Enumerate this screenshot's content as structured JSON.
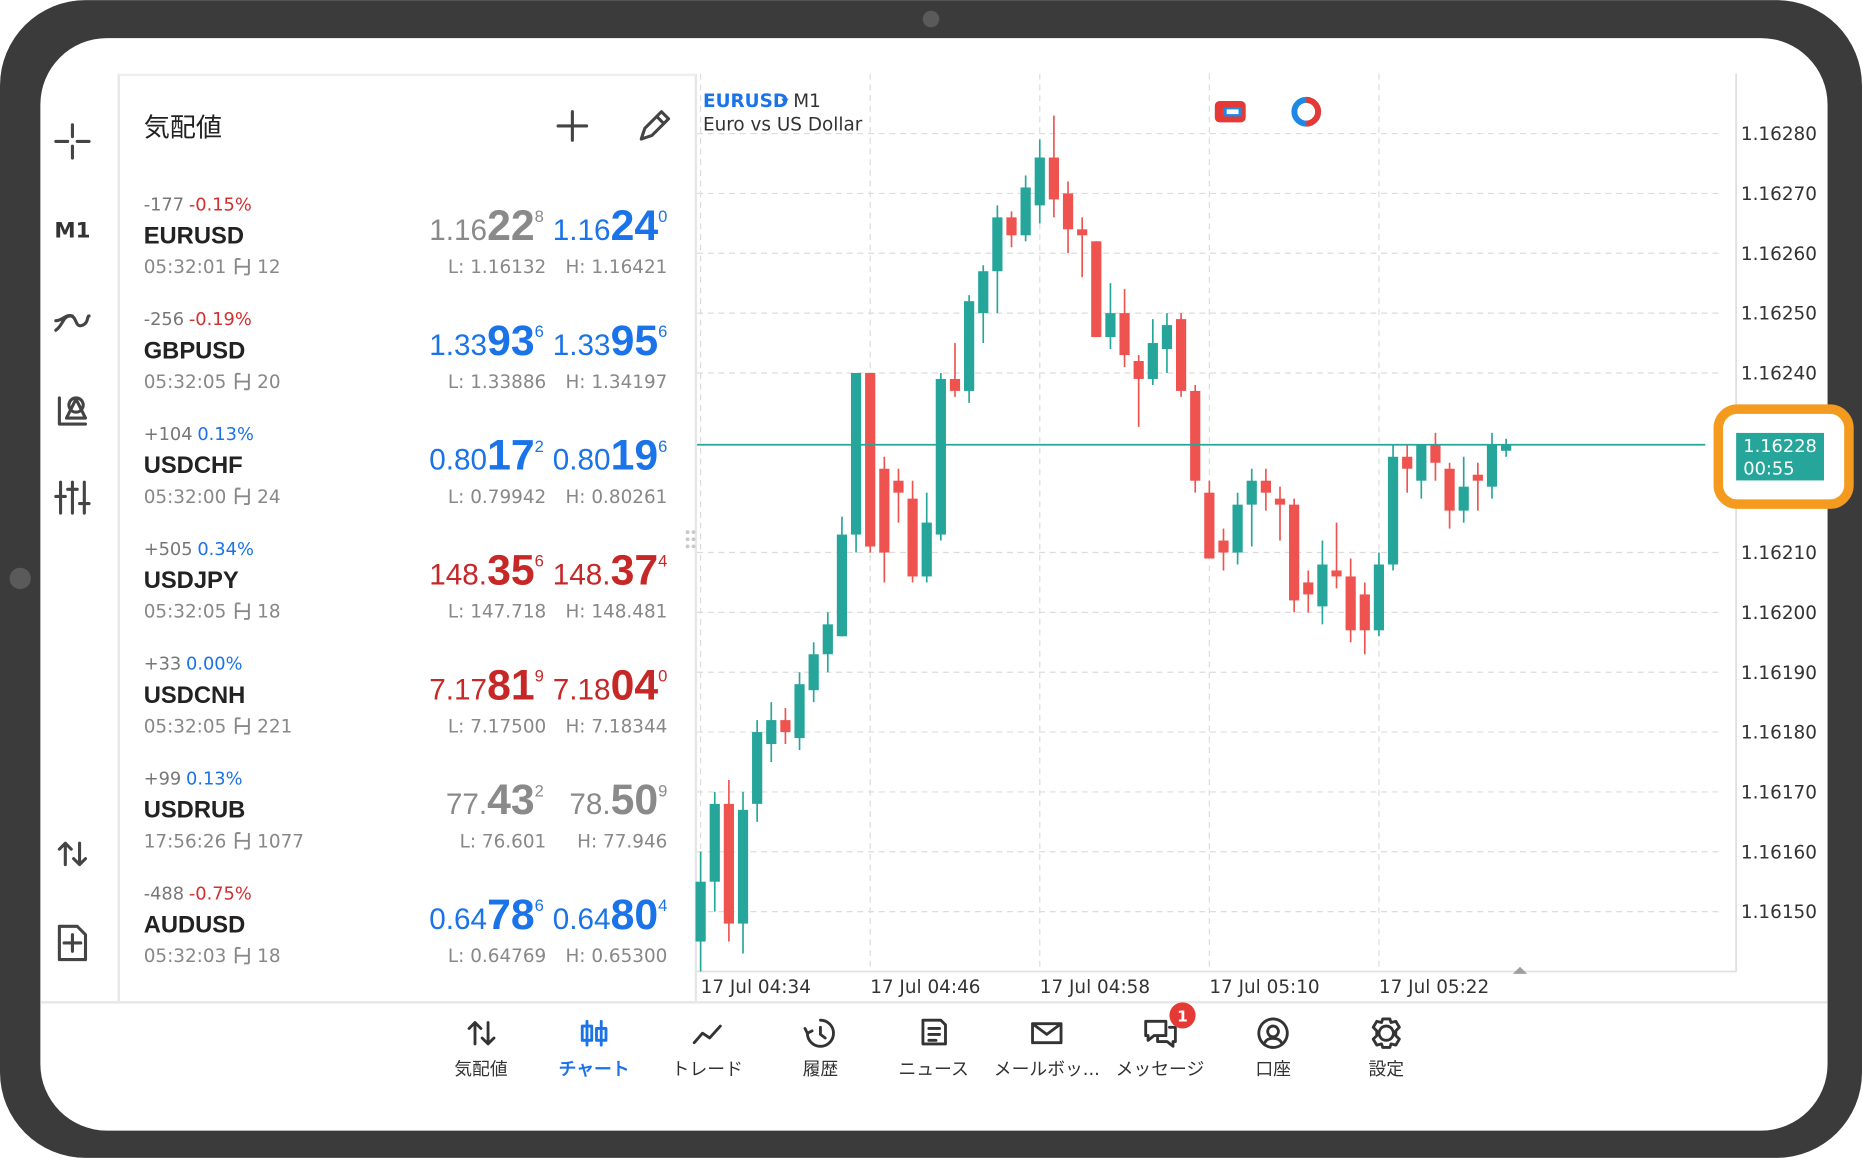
{
  "toolbar": {
    "timeframe": "M1"
  },
  "quotes": {
    "title": "気配値",
    "rows": [
      {
        "change": "-177",
        "change_pct": "-0.15%",
        "pct_color": "#d32f2f",
        "symbol": "EURUSD",
        "time": "05:32:01",
        "spread": "12",
        "bid": [
          "1.16",
          "22",
          "8"
        ],
        "bid_color": "#8a8a8a",
        "ask": [
          "1.16",
          "24",
          "0"
        ],
        "ask_color": "#1a73e8",
        "low": "L: 1.16132",
        "high": "H: 1.16421"
      },
      {
        "change": "-256",
        "change_pct": "-0.19%",
        "pct_color": "#d32f2f",
        "symbol": "GBPUSD",
        "time": "05:32:05",
        "spread": "20",
        "bid": [
          "1.33",
          "93",
          "6"
        ],
        "bid_color": "#1a73e8",
        "ask": [
          "1.33",
          "95",
          "6"
        ],
        "ask_color": "#1a73e8",
        "low": "L: 1.33886",
        "high": "H: 1.34197"
      },
      {
        "change": "+104",
        "change_pct": "0.13%",
        "pct_color": "#1a73e8",
        "symbol": "USDCHF",
        "time": "05:32:00",
        "spread": "24",
        "bid": [
          "0.80",
          "17",
          "2"
        ],
        "bid_color": "#1a73e8",
        "ask": [
          "0.80",
          "19",
          "6"
        ],
        "ask_color": "#1a73e8",
        "low": "L: 0.79942",
        "high": "H: 0.80261"
      },
      {
        "change": "+505",
        "change_pct": "0.34%",
        "pct_color": "#1a73e8",
        "symbol": "USDJPY",
        "time": "05:32:05",
        "spread": "18",
        "bid": [
          "148.",
          "35",
          "6"
        ],
        "bid_color": "#c62828",
        "ask": [
          "148.",
          "37",
          "4"
        ],
        "ask_color": "#c62828",
        "low": "L: 147.718",
        "high": "H: 148.481"
      },
      {
        "change": "+33",
        "change_pct": "0.00%",
        "pct_color": "#1a73e8",
        "symbol": "USDCNH",
        "time": "05:32:05",
        "spread": "221",
        "bid": [
          "7.17",
          "81",
          "9"
        ],
        "bid_color": "#c62828",
        "ask": [
          "7.18",
          "04",
          "0"
        ],
        "ask_color": "#c62828",
        "low": "L: 7.17500",
        "high": "H: 7.18344"
      },
      {
        "change": "+99",
        "change_pct": "0.13%",
        "pct_color": "#1a73e8",
        "symbol": "USDRUB",
        "time": "17:56:26",
        "spread": "1077",
        "bid": [
          "77.",
          "43",
          "2"
        ],
        "bid_color": "#8a8a8a",
        "ask": [
          "78.",
          "50",
          "9"
        ],
        "ask_color": "#8a8a8a",
        "low": "L: 76.601",
        "high": "H: 77.946"
      },
      {
        "change": "-488",
        "change_pct": "-0.75%",
        "pct_color": "#d32f2f",
        "symbol": "AUDUSD",
        "time": "05:32:03",
        "spread": "18",
        "bid": [
          "0.64",
          "78",
          "6"
        ],
        "bid_color": "#1a73e8",
        "ask": [
          "0.64",
          "80",
          "4"
        ],
        "ask_color": "#1a73e8",
        "low": "L: 0.64769",
        "high": "H: 0.65300"
      }
    ]
  },
  "chart_data": {
    "type": "candlestick",
    "symbol": "EURUSD",
    "timeframe": "M1",
    "description": "Euro vs US Dollar",
    "up_color": "#26a69a",
    "down_color": "#ef5350",
    "grid": true,
    "ylim": [
      1.1614,
      1.1629
    ],
    "yticks": [
      {
        "value": 1.1628,
        "label": "1.16280"
      },
      {
        "value": 1.1627,
        "label": "1.16270"
      },
      {
        "value": 1.1626,
        "label": "1.16260"
      },
      {
        "value": 1.1625,
        "label": "1.16250"
      },
      {
        "value": 1.1624,
        "label": "1.16240"
      },
      {
        "value": 1.1621,
        "label": "1.16210"
      },
      {
        "value": 1.162,
        "label": "1.16200"
      },
      {
        "value": 1.1619,
        "label": "1.16190"
      },
      {
        "value": 1.1618,
        "label": "1.16180"
      },
      {
        "value": 1.1617,
        "label": "1.16170"
      },
      {
        "value": 1.1616,
        "label": "1.16160"
      },
      {
        "value": 1.1615,
        "label": "1.16150"
      }
    ],
    "xticks": [
      {
        "value": 0,
        "label": "17 Jul 04:34"
      },
      {
        "value": 12,
        "label": "17 Jul 04:46"
      },
      {
        "value": 24,
        "label": "17 Jul 04:58"
      },
      {
        "value": 36,
        "label": "17 Jul 05:10"
      },
      {
        "value": 48,
        "label": "17 Jul 05:22"
      }
    ],
    "current_price": 1.16228,
    "timer": "00:55",
    "candles": [
      {
        "open": 1.16145,
        "high": 1.1616,
        "low": 1.1614,
        "close": 1.16155
      },
      {
        "open": 1.16155,
        "high": 1.1617,
        "low": 1.1615,
        "close": 1.16168
      },
      {
        "open": 1.16168,
        "high": 1.16172,
        "low": 1.16145,
        "close": 1.16148
      },
      {
        "open": 1.16148,
        "high": 1.1617,
        "low": 1.16143,
        "close": 1.16167
      },
      {
        "open": 1.16168,
        "high": 1.16182,
        "low": 1.16165,
        "close": 1.1618
      },
      {
        "open": 1.16178,
        "high": 1.16185,
        "low": 1.16175,
        "close": 1.16182
      },
      {
        "open": 1.16182,
        "high": 1.16184,
        "low": 1.16178,
        "close": 1.1618
      },
      {
        "open": 1.16179,
        "high": 1.1619,
        "low": 1.16177,
        "close": 1.16188
      },
      {
        "open": 1.16187,
        "high": 1.16195,
        "low": 1.16185,
        "close": 1.16193
      },
      {
        "open": 1.16193,
        "high": 1.162,
        "low": 1.1619,
        "close": 1.16198
      },
      {
        "open": 1.16196,
        "high": 1.16216,
        "low": 1.16196,
        "close": 1.16213
      },
      {
        "open": 1.16213,
        "high": 1.1624,
        "low": 1.1621,
        "close": 1.1624
      },
      {
        "open": 1.1624,
        "high": 1.1624,
        "low": 1.1621,
        "close": 1.16211
      },
      {
        "open": 1.16224,
        "high": 1.16226,
        "low": 1.16205,
        "close": 1.1621
      },
      {
        "open": 1.16222,
        "high": 1.16224,
        "low": 1.16215,
        "close": 1.1622
      },
      {
        "open": 1.16219,
        "high": 1.16222,
        "low": 1.16205,
        "close": 1.16206
      },
      {
        "open": 1.16206,
        "high": 1.1622,
        "low": 1.16205,
        "close": 1.16215
      },
      {
        "open": 1.16213,
        "high": 1.1624,
        "low": 1.16212,
        "close": 1.16239
      },
      {
        "open": 1.16239,
        "high": 1.16245,
        "low": 1.16236,
        "close": 1.16237
      },
      {
        "open": 1.16237,
        "high": 1.16253,
        "low": 1.16235,
        "close": 1.16252
      },
      {
        "open": 1.1625,
        "high": 1.16258,
        "low": 1.16245,
        "close": 1.16257
      },
      {
        "open": 1.16257,
        "high": 1.16268,
        "low": 1.1625,
        "close": 1.16266
      },
      {
        "open": 1.16266,
        "high": 1.16267,
        "low": 1.16261,
        "close": 1.16263
      },
      {
        "open": 1.16263,
        "high": 1.16273,
        "low": 1.16262,
        "close": 1.16271
      },
      {
        "open": 1.16268,
        "high": 1.16279,
        "low": 1.16265,
        "close": 1.16276
      },
      {
        "open": 1.16276,
        "high": 1.16283,
        "low": 1.16266,
        "close": 1.16269
      },
      {
        "open": 1.1627,
        "high": 1.16272,
        "low": 1.1626,
        "close": 1.16264
      },
      {
        "open": 1.16264,
        "high": 1.16266,
        "low": 1.16256,
        "close": 1.16263
      },
      {
        "open": 1.16262,
        "high": 1.16262,
        "low": 1.16246,
        "close": 1.16246
      },
      {
        "open": 1.16246,
        "high": 1.16255,
        "low": 1.16244,
        "close": 1.1625
      },
      {
        "open": 1.1625,
        "high": 1.16254,
        "low": 1.16241,
        "close": 1.16243
      },
      {
        "open": 1.16242,
        "high": 1.16243,
        "low": 1.16231,
        "close": 1.16239
      },
      {
        "open": 1.16239,
        "high": 1.16249,
        "low": 1.16238,
        "close": 1.16245
      },
      {
        "open": 1.16244,
        "high": 1.1625,
        "low": 1.1624,
        "close": 1.16248
      },
      {
        "open": 1.16249,
        "high": 1.1625,
        "low": 1.16236,
        "close": 1.16237
      },
      {
        "open": 1.16237,
        "high": 1.16238,
        "low": 1.1622,
        "close": 1.16222
      },
      {
        "open": 1.1622,
        "high": 1.16222,
        "low": 1.16209,
        "close": 1.16209
      },
      {
        "open": 1.16212,
        "high": 1.16214,
        "low": 1.16207,
        "close": 1.1621
      },
      {
        "open": 1.1621,
        "high": 1.1622,
        "low": 1.16208,
        "close": 1.16218
      },
      {
        "open": 1.16218,
        "high": 1.16224,
        "low": 1.16211,
        "close": 1.16222
      },
      {
        "open": 1.16222,
        "high": 1.16224,
        "low": 1.16217,
        "close": 1.1622
      },
      {
        "open": 1.16219,
        "high": 1.16221,
        "low": 1.16212,
        "close": 1.16218
      },
      {
        "open": 1.16218,
        "high": 1.16219,
        "low": 1.162,
        "close": 1.16202
      },
      {
        "open": 1.16205,
        "high": 1.16207,
        "low": 1.162,
        "close": 1.16203
      },
      {
        "open": 1.16201,
        "high": 1.16212,
        "low": 1.16198,
        "close": 1.16208
      },
      {
        "open": 1.16207,
        "high": 1.16215,
        "low": 1.16204,
        "close": 1.16206
      },
      {
        "open": 1.16206,
        "high": 1.16209,
        "low": 1.16195,
        "close": 1.16197
      },
      {
        "open": 1.16203,
        "high": 1.16205,
        "low": 1.16193,
        "close": 1.16197
      },
      {
        "open": 1.16197,
        "high": 1.1621,
        "low": 1.16196,
        "close": 1.16208
      },
      {
        "open": 1.16208,
        "high": 1.16228,
        "low": 1.16207,
        "close": 1.16226
      },
      {
        "open": 1.16226,
        "high": 1.16228,
        "low": 1.1622,
        "close": 1.16224
      },
      {
        "open": 1.16222,
        "high": 1.16228,
        "low": 1.16219,
        "close": 1.16228
      },
      {
        "open": 1.16228,
        "high": 1.1623,
        "low": 1.16222,
        "close": 1.16225
      },
      {
        "open": 1.16224,
        "high": 1.16225,
        "low": 1.16214,
        "close": 1.16217
      },
      {
        "open": 1.16217,
        "high": 1.16226,
        "low": 1.16215,
        "close": 1.16221
      },
      {
        "open": 1.16223,
        "high": 1.16225,
        "low": 1.16217,
        "close": 1.16222
      },
      {
        "open": 1.16221,
        "high": 1.1623,
        "low": 1.16219,
        "close": 1.16228
      },
      {
        "open": 1.16227,
        "high": 1.16229,
        "low": 1.16226,
        "close": 1.16228
      }
    ]
  },
  "nav": {
    "active": 1,
    "items": [
      {
        "label": "気配値"
      },
      {
        "label": "チャート"
      },
      {
        "label": "トレード"
      },
      {
        "label": "履歴"
      },
      {
        "label": "ニュース"
      },
      {
        "label": "メールボッ..."
      },
      {
        "label": "メッセージ",
        "badge": 1
      },
      {
        "label": "口座"
      },
      {
        "label": "設定"
      }
    ]
  }
}
